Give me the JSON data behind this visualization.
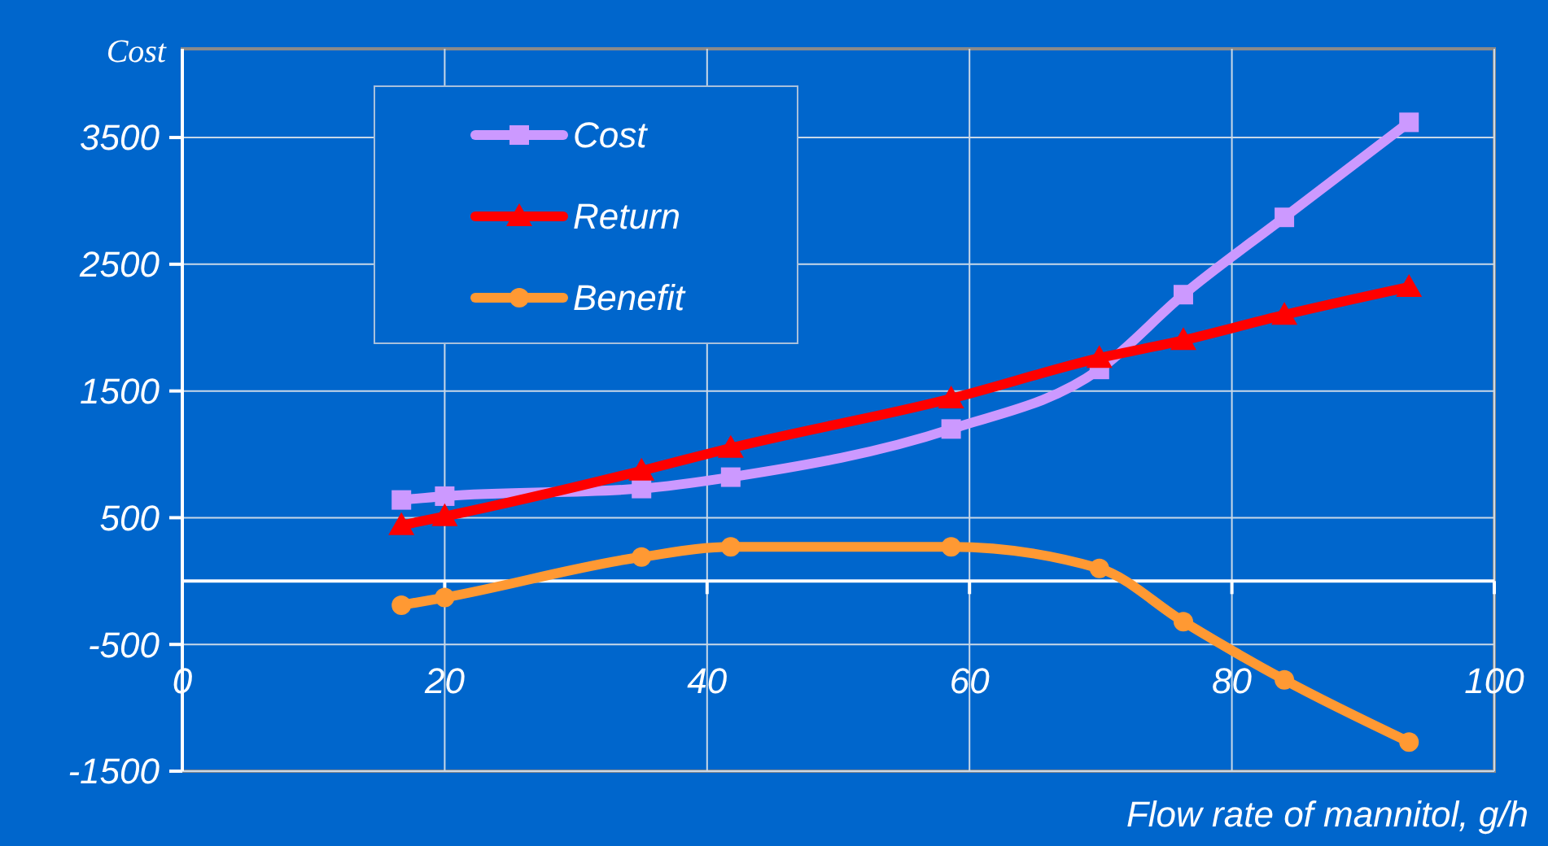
{
  "chart_data": {
    "type": "line",
    "ylabel": "Cost",
    "xlabel": "Flow rate of mannitol, g/h",
    "xlim": [
      0,
      100
    ],
    "xticks": [
      0,
      20,
      40,
      60,
      80,
      100
    ],
    "ylim": [
      -1500,
      4200
    ],
    "yticks": [
      -1500,
      -500,
      500,
      1500,
      2500,
      3500
    ],
    "grid": true,
    "legend": "top left",
    "x": [
      16.7,
      20,
      35,
      41.8,
      58.6,
      69.9,
      76.3,
      84,
      93.5
    ],
    "series": [
      {
        "name": "Cost",
        "color": "#cc99ff",
        "marker": "square",
        "values": [
          640,
          670,
          730,
          820,
          1200,
          1670,
          2260,
          2870,
          3620
        ]
      },
      {
        "name": "Return",
        "color": "#ff0000",
        "marker": "triangle",
        "values": [
          440,
          510,
          870,
          1050,
          1440,
          1760,
          1900,
          2100,
          2320
        ]
      },
      {
        "name": "Benefit",
        "color": "#ff9933",
        "marker": "circle",
        "values": [
          -190,
          -130,
          190,
          270,
          270,
          100,
          -320,
          -780,
          -1270
        ]
      }
    ]
  }
}
